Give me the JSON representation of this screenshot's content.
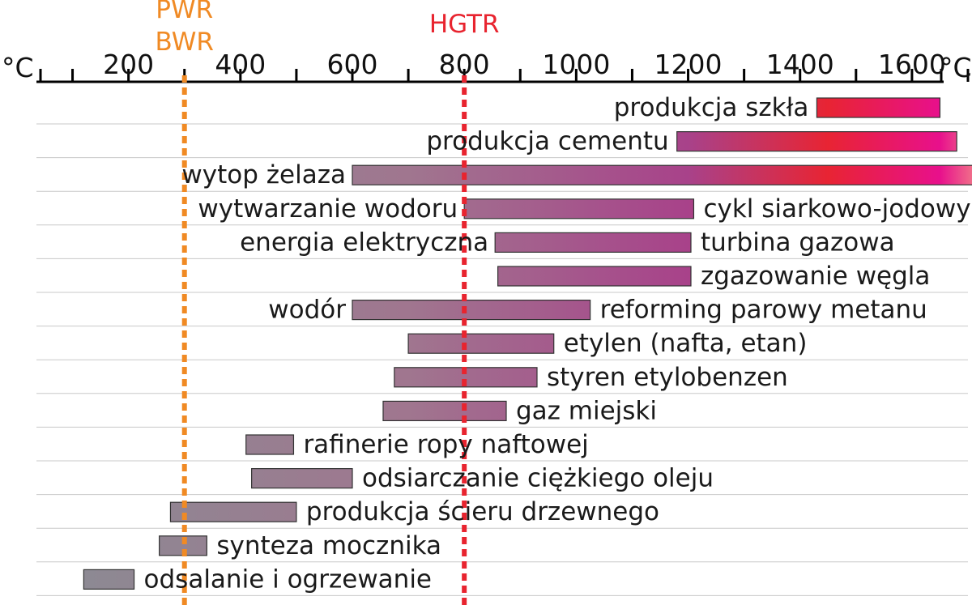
{
  "chart_data": {
    "type": "bar",
    "unit_left": "°C",
    "unit_right": "°C",
    "xlim": [
      50,
      1720
    ],
    "ticks_labeled": [
      200,
      400,
      600,
      800,
      1000,
      1200,
      1400,
      1600
    ],
    "ticks_minor": [
      100,
      300,
      500,
      700,
      900,
      1100,
      1300,
      1500,
      1700
    ],
    "reference_lines": [
      {
        "label_lines": [
          "PWR",
          "BWR"
        ],
        "x": 300,
        "color": "#f08a24"
      },
      {
        "label_lines": [
          "HGTR"
        ],
        "x": 800,
        "color": "#e8242f"
      }
    ],
    "rows": [
      {
        "start": 1430,
        "end": 1650,
        "left_label": "",
        "right_label": "",
        "inner_label": "produkcja szkła"
      },
      {
        "start": 1180,
        "end": 1680,
        "left_label": "",
        "right_label": "",
        "inner_label": "produkcja cementu"
      },
      {
        "start": 600,
        "end": 1710,
        "left_label": "wytop żelaza",
        "right_label": "",
        "inner_label": ""
      },
      {
        "start": 800,
        "end": 1210,
        "left_label": "wytwarzanie wodoru",
        "right_label": "cykl siarkowo-jodowy",
        "inner_label": ""
      },
      {
        "start": 855,
        "end": 1205,
        "left_label": "energia elektryczna",
        "right_label": "turbina gazowa",
        "inner_label": ""
      },
      {
        "start": 860,
        "end": 1205,
        "left_label": "",
        "right_label": "zgazowanie węgla",
        "inner_label": ""
      },
      {
        "start": 600,
        "end": 1025,
        "left_label": "wodór",
        "right_label": "reforming parowy metanu",
        "inner_label": ""
      },
      {
        "start": 700,
        "end": 960,
        "left_label": "",
        "right_label": "etylen (nafta, etan)",
        "inner_label": ""
      },
      {
        "start": 675,
        "end": 930,
        "left_label": "",
        "right_label": "styren etylobenzen",
        "inner_label": ""
      },
      {
        "start": 655,
        "end": 875,
        "left_label": "",
        "right_label": "gaz miejski",
        "inner_label": ""
      },
      {
        "start": 410,
        "end": 495,
        "left_label": "",
        "right_label": "rafinerie ropy naftowej",
        "inner_label": ""
      },
      {
        "start": 420,
        "end": 600,
        "left_label": "",
        "right_label": "odsiarczanie ciężkiego oleju",
        "inner_label": ""
      },
      {
        "start": 275,
        "end": 500,
        "left_label": "",
        "right_label": "produkcja ścieru drzewnego",
        "inner_label": ""
      },
      {
        "start": 255,
        "end": 340,
        "left_label": "",
        "right_label": "synteza mocznika",
        "inner_label": ""
      },
      {
        "start": 120,
        "end": 210,
        "left_label": "",
        "right_label": "odsalanie i ogrzewanie",
        "inner_label": ""
      }
    ],
    "bar_gradient_stops": [
      {
        "temp": 100,
        "color": "#8c8a93"
      },
      {
        "temp": 700,
        "color": "#a0768f"
      },
      {
        "temp": 1200,
        "color": "#a8428a"
      },
      {
        "temp": 1450,
        "color": "#e82433"
      },
      {
        "temp": 1650,
        "color": "#e8108c"
      },
      {
        "temp": 1720,
        "color": "#f06c8a"
      }
    ],
    "grid": true,
    "gridline_color": "#c8c8c8",
    "axis_color": "#000000"
  }
}
